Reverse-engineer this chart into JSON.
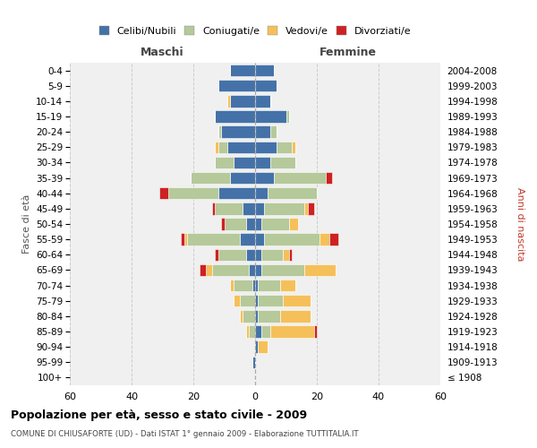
{
  "age_groups": [
    "100+",
    "95-99",
    "90-94",
    "85-89",
    "80-84",
    "75-79",
    "70-74",
    "65-69",
    "60-64",
    "55-59",
    "50-54",
    "45-49",
    "40-44",
    "35-39",
    "30-34",
    "25-29",
    "20-24",
    "15-19",
    "10-14",
    "5-9",
    "0-4"
  ],
  "birth_years": [
    "≤ 1908",
    "1909-1913",
    "1914-1918",
    "1919-1923",
    "1924-1928",
    "1929-1933",
    "1934-1938",
    "1939-1943",
    "1944-1948",
    "1949-1953",
    "1954-1958",
    "1959-1963",
    "1964-1968",
    "1969-1973",
    "1974-1978",
    "1979-1983",
    "1984-1988",
    "1989-1993",
    "1994-1998",
    "1999-2003",
    "2004-2008"
  ],
  "male": {
    "celibi": [
      0,
      1,
      0,
      0,
      0,
      0,
      1,
      2,
      3,
      5,
      3,
      4,
      12,
      8,
      7,
      9,
      11,
      13,
      8,
      12,
      8
    ],
    "coniugati": [
      0,
      0,
      0,
      2,
      4,
      5,
      6,
      12,
      9,
      17,
      7,
      9,
      16,
      13,
      6,
      3,
      1,
      0,
      0,
      0,
      0
    ],
    "vedovi": [
      0,
      0,
      0,
      1,
      1,
      2,
      1,
      2,
      0,
      1,
      0,
      0,
      0,
      0,
      0,
      1,
      0,
      0,
      1,
      0,
      0
    ],
    "divorziati": [
      0,
      0,
      0,
      0,
      0,
      0,
      0,
      2,
      1,
      1,
      1,
      1,
      3,
      0,
      0,
      0,
      0,
      0,
      0,
      0,
      0
    ]
  },
  "female": {
    "nubili": [
      0,
      0,
      1,
      2,
      1,
      1,
      1,
      2,
      2,
      3,
      2,
      3,
      4,
      6,
      5,
      7,
      5,
      10,
      5,
      7,
      6
    ],
    "coniugate": [
      0,
      0,
      0,
      3,
      7,
      8,
      7,
      14,
      7,
      18,
      9,
      13,
      16,
      17,
      8,
      5,
      2,
      1,
      0,
      0,
      0
    ],
    "vedove": [
      0,
      0,
      3,
      14,
      10,
      9,
      5,
      10,
      2,
      3,
      3,
      1,
      0,
      0,
      0,
      1,
      0,
      0,
      0,
      0,
      0
    ],
    "divorziate": [
      0,
      0,
      0,
      1,
      0,
      0,
      0,
      0,
      1,
      3,
      0,
      2,
      0,
      2,
      0,
      0,
      0,
      0,
      0,
      0,
      0
    ]
  },
  "colors": {
    "celibi": "#4472a8",
    "coniugati": "#b5c99a",
    "vedovi": "#f5c05a",
    "divorziati": "#cc2222"
  },
  "xlim": 60,
  "title": "Popolazione per età, sesso e stato civile - 2009",
  "subtitle": "COMUNE DI CHIUSAFORTE (UD) - Dati ISTAT 1° gennaio 2009 - Elaborazione TUTTITALIA.IT",
  "ylabel_left": "Fasce di età",
  "ylabel_right": "Anni di nascita",
  "header_left": "Maschi",
  "header_right": "Femmine",
  "legend_labels": [
    "Celibi/Nubili",
    "Coniugati/e",
    "Vedovi/e",
    "Divorziati/e"
  ],
  "bg_color": "#f0f0f0"
}
